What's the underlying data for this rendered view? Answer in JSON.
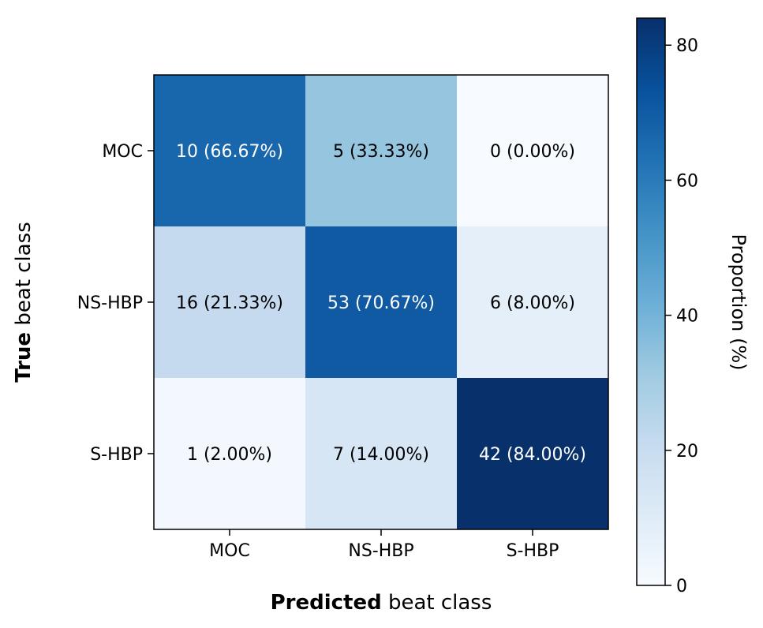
{
  "chart_data": {
    "type": "heatmap",
    "x_tick_labels": [
      "MOC",
      "NS-HBP",
      "S-HBP"
    ],
    "y_tick_labels": [
      "MOC",
      "NS-HBP",
      "S-HBP"
    ],
    "counts": [
      [
        10,
        5,
        0
      ],
      [
        16,
        53,
        6
      ],
      [
        1,
        7,
        42
      ]
    ],
    "percentages": [
      [
        66.67,
        33.33,
        0.0
      ],
      [
        21.33,
        70.67,
        8.0
      ],
      [
        2.0,
        14.0,
        84.0
      ]
    ],
    "cell_labels": [
      [
        "10 (66.67%)",
        "5 (33.33%)",
        "0 (0.00%)"
      ],
      [
        "16 (21.33%)",
        "53 (70.67%)",
        "6 (8.00%)"
      ],
      [
        "1 (2.00%)",
        "7 (14.00%)",
        "42 (84.00%)"
      ]
    ],
    "xlabel": {
      "bold": "Predicted",
      "rest": " beat class"
    },
    "ylabel": {
      "bold": "True",
      "rest": " beat class"
    },
    "colorbar": {
      "label": "Proportion (%)",
      "ticks": [
        0,
        20,
        40,
        60,
        80
      ],
      "range": [
        0,
        84
      ],
      "colormap": "Blues",
      "colors": [
        "#f7fbff",
        "#deebf7",
        "#c6dbef",
        "#9ecae1",
        "#6baed6",
        "#4292c6",
        "#2171b5",
        "#08519c",
        "#08306b"
      ]
    }
  }
}
